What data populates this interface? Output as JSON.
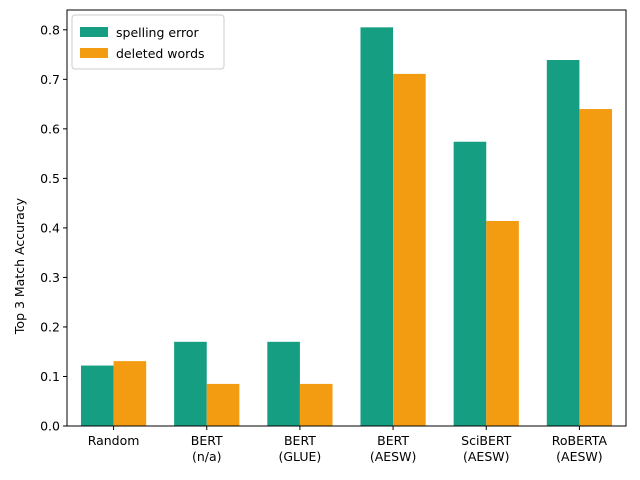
{
  "chart_data": {
    "type": "bar",
    "title": "",
    "xlabel": "",
    "ylabel": "Top 3 Match Accuracy",
    "ylim": [
      0,
      0.84
    ],
    "yticks": [
      "0.0",
      "0.1",
      "0.2",
      "0.3",
      "0.4",
      "0.5",
      "0.6",
      "0.7",
      "0.8"
    ],
    "categories": [
      [
        "Random"
      ],
      [
        "BERT",
        "(n/a)"
      ],
      [
        "BERT",
        "(GLUE)"
      ],
      [
        "BERT",
        "(AESW)"
      ],
      [
        "SciBERT",
        "(AESW)"
      ],
      [
        "RoBERTA",
        "(AESW)"
      ]
    ],
    "series": [
      {
        "name": "spelling error",
        "color": "#159e82",
        "values": [
          0.122,
          0.17,
          0.17,
          0.805,
          0.574,
          0.739
        ]
      },
      {
        "name": "deleted words",
        "color": "#f39c12",
        "values": [
          0.131,
          0.085,
          0.085,
          0.711,
          0.414,
          0.64
        ]
      }
    ],
    "legend": "top-left",
    "grid": false
  }
}
